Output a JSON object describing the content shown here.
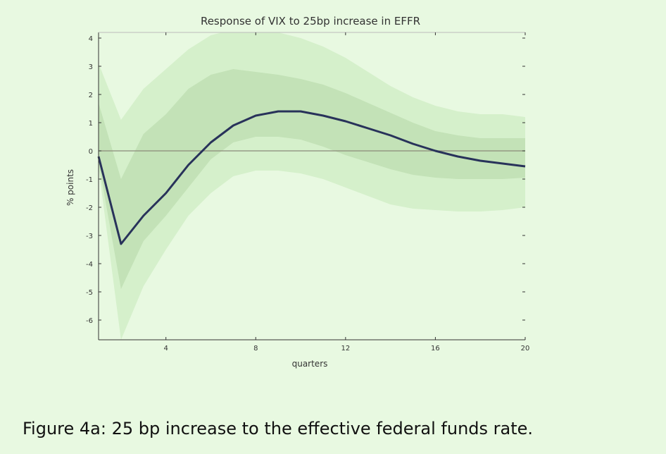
{
  "chart_data": {
    "type": "line",
    "title": "Response of VIX to 25bp increase in EFFR",
    "xlabel": "quarters",
    "ylabel": "% points",
    "xlim": [
      1,
      20
    ],
    "ylim": [
      -6.7,
      4.2
    ],
    "xticks": [
      4,
      8,
      12,
      16,
      20
    ],
    "yticks": [
      4,
      3,
      2,
      1,
      0,
      -1,
      -2,
      -3,
      -4,
      -5,
      -6
    ],
    "x": [
      1,
      2,
      3,
      4,
      5,
      6,
      7,
      8,
      9,
      10,
      11,
      12,
      13,
      14,
      15,
      16,
      17,
      18,
      19,
      20
    ],
    "series": [
      {
        "values": [
          -0.2,
          -3.3,
          -2.3,
          -1.5,
          -0.5,
          0.3,
          0.9,
          1.25,
          1.4,
          1.4,
          1.25,
          1.05,
          0.8,
          0.55,
          0.25,
          0.0,
          -0.2,
          -0.35,
          -0.45,
          -0.55
        ]
      }
    ],
    "bands": [
      {
        "lower": [
          -0.6,
          -6.7,
          -4.8,
          -3.5,
          -2.3,
          -1.5,
          -0.9,
          -0.7,
          -0.7,
          -0.8,
          -1.0,
          -1.3,
          -1.6,
          -1.9,
          -2.05,
          -2.1,
          -2.15,
          -2.15,
          -2.1,
          -2.0
        ],
        "upper": [
          3.1,
          1.1,
          2.2,
          2.9,
          3.6,
          4.1,
          4.3,
          4.3,
          4.2,
          4.0,
          3.7,
          3.3,
          2.8,
          2.3,
          1.9,
          1.6,
          1.4,
          1.3,
          1.3,
          1.2
        ]
      },
      {
        "lower": [
          -0.4,
          -4.9,
          -3.2,
          -2.3,
          -1.3,
          -0.3,
          0.3,
          0.5,
          0.5,
          0.4,
          0.15,
          -0.15,
          -0.4,
          -0.65,
          -0.85,
          -0.95,
          -1.0,
          -1.0,
          -1.0,
          -0.95
        ],
        "upper": [
          1.7,
          -1.0,
          0.6,
          1.3,
          2.2,
          2.7,
          2.9,
          2.8,
          2.7,
          2.55,
          2.35,
          2.05,
          1.7,
          1.35,
          1.0,
          0.7,
          0.55,
          0.45,
          0.45,
          0.45
        ]
      }
    ],
    "colors": {
      "outer_band": "#d5f0cb",
      "inner_band": "#c3e2b7",
      "line": "#28325a",
      "zero_line": "#8a8a7a"
    },
    "grid": false
  },
  "caption": "Figure 4a: 25 bp increase to the effective federal funds rate."
}
